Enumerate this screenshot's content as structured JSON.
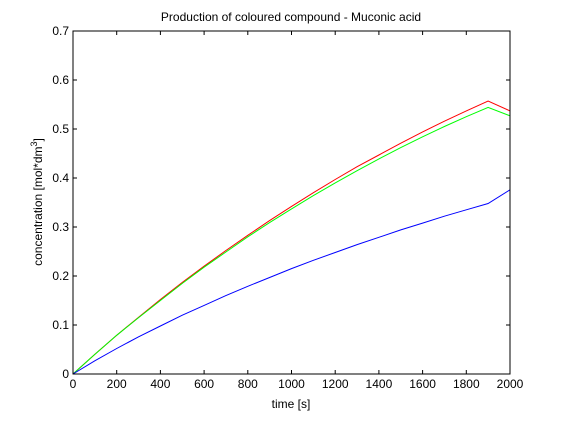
{
  "chart_data": {
    "type": "line",
    "title": "Production of coloured compound - Muconic acid",
    "xlabel": "time [s]",
    "ylabel_base": "concentration [mol*dm",
    "ylabel_sup": "3",
    "ylabel_end": "]",
    "xlim": [
      0,
      2000
    ],
    "ylim": [
      0,
      0.7
    ],
    "xticks": [
      0,
      200,
      400,
      600,
      800,
      1000,
      1200,
      1400,
      1600,
      1800,
      2000
    ],
    "yticks": [
      0,
      0.1,
      0.2,
      0.3,
      0.4,
      0.5,
      0.6,
      0.7
    ],
    "xtick_labels": [
      "0",
      "200",
      "400",
      "600",
      "800",
      "1000",
      "1200",
      "1400",
      "1600",
      "1800",
      "2000"
    ],
    "ytick_labels": [
      "0",
      "0.1",
      "0.2",
      "0.3",
      "0.4",
      "0.5",
      "0.6",
      "0.7"
    ],
    "grid": false,
    "x": [
      0,
      100,
      200,
      300,
      400,
      500,
      600,
      700,
      800,
      900,
      1000,
      1100,
      1200,
      1300,
      1400,
      1500,
      1600,
      1700,
      1800,
      1900,
      2000
    ],
    "series": [
      {
        "color": "#ff0000",
        "values": [
          0,
          0.04,
          0.079,
          0.116,
          0.152,
          0.187,
          0.22,
          0.252,
          0.283,
          0.313,
          0.342,
          0.37,
          0.397,
          0.423,
          0.447,
          0.471,
          0.494,
          0.516,
          0.537,
          0.557,
          0.537
        ]
      },
      {
        "color": "#00ff00",
        "values": [
          0,
          0.04,
          0.079,
          0.115,
          0.15,
          0.185,
          0.218,
          0.249,
          0.28,
          0.309,
          0.337,
          0.364,
          0.39,
          0.415,
          0.439,
          0.462,
          0.484,
          0.505,
          0.525,
          0.544,
          0.527
        ]
      },
      {
        "color": "#0000ff",
        "values": [
          0,
          0.027,
          0.052,
          0.076,
          0.098,
          0.12,
          0.14,
          0.16,
          0.179,
          0.197,
          0.215,
          0.232,
          0.248,
          0.264,
          0.279,
          0.294,
          0.308,
          0.322,
          0.335,
          0.348,
          0.376
        ]
      }
    ]
  }
}
